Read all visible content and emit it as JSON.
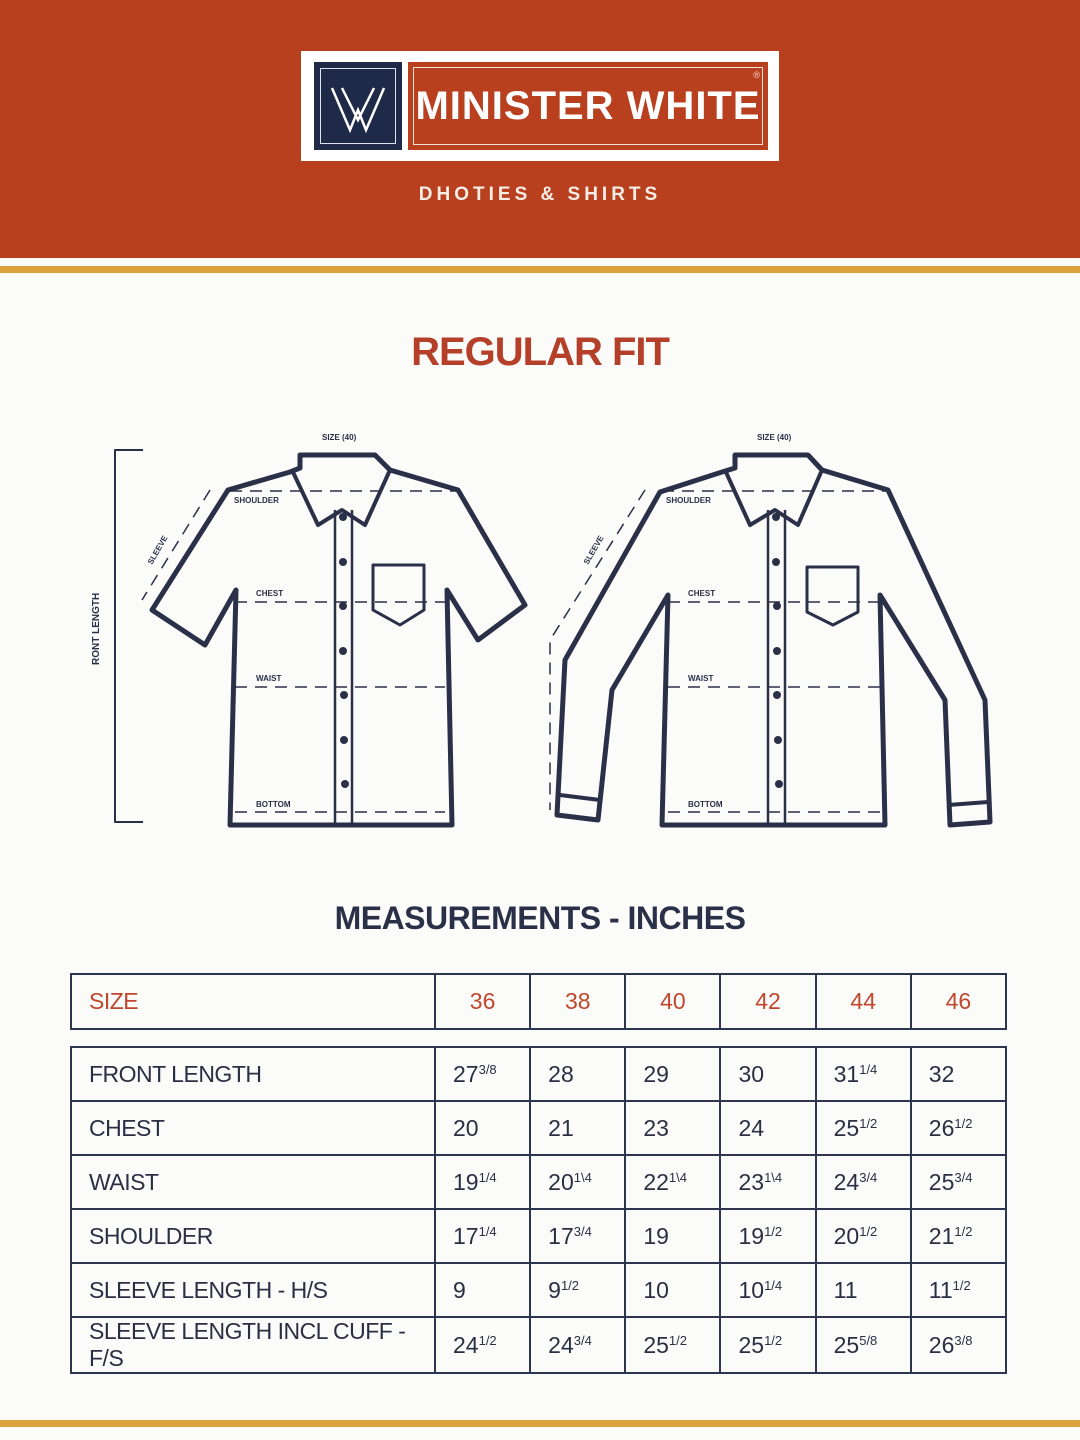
{
  "brand": {
    "name": "MINISTER WHITE",
    "registered": "®",
    "tagline": "DHOTIES & SHIRTS",
    "logo_letter": "W"
  },
  "colors": {
    "brand_red": "#b8401f",
    "navy": "#1f2a48",
    "gold": "#dca33c",
    "title_red": "#b5402a"
  },
  "title": "REGULAR FIT",
  "diagram": {
    "size_label": "SIZE (40)",
    "shoulder": "SHOULDER",
    "sleeve": "SLEEVE",
    "chest": "CHEST",
    "waist": "WAIST",
    "bottom": "BOTTOM",
    "front_length": "RONT LENGTH"
  },
  "measurements_title": "MEASUREMENTS - INCHES",
  "table": {
    "size_label": "SIZE",
    "sizes": [
      "36",
      "38",
      "40",
      "42",
      "44",
      "46"
    ],
    "rows": [
      {
        "label": "FRONT LENGTH",
        "values": [
          [
            "27",
            "3/8"
          ],
          [
            "28",
            ""
          ],
          [
            "29",
            ""
          ],
          [
            "30",
            ""
          ],
          [
            "31",
            "1/4"
          ],
          [
            "32",
            ""
          ]
        ]
      },
      {
        "label": "CHEST",
        "values": [
          [
            "20",
            ""
          ],
          [
            "21",
            ""
          ],
          [
            "23",
            ""
          ],
          [
            "24",
            ""
          ],
          [
            "25",
            "1/2"
          ],
          [
            "26",
            "1/2"
          ]
        ]
      },
      {
        "label": "WAIST",
        "values": [
          [
            "19",
            "1/4"
          ],
          [
            "20",
            "1\\4"
          ],
          [
            "22",
            "1\\4"
          ],
          [
            "23",
            "1\\4"
          ],
          [
            "24",
            "3/4"
          ],
          [
            "25",
            "3/4"
          ]
        ]
      },
      {
        "label": "SHOULDER",
        "values": [
          [
            "17",
            "1/4"
          ],
          [
            "17",
            "3/4"
          ],
          [
            "19",
            ""
          ],
          [
            "19",
            "1/2"
          ],
          [
            "20",
            "1/2"
          ],
          [
            "21",
            "1/2"
          ]
        ]
      },
      {
        "label": "SLEEVE LENGTH - H/S",
        "values": [
          [
            "9",
            ""
          ],
          [
            "9",
            "1/2"
          ],
          [
            "10",
            ""
          ],
          [
            "10",
            "1/4"
          ],
          [
            "11",
            ""
          ],
          [
            "11",
            "1/2"
          ]
        ]
      },
      {
        "label": "SLEEVE LENGTH INCL CUFF - F/S",
        "values": [
          [
            "24",
            "1/2"
          ],
          [
            "24",
            "3/4"
          ],
          [
            "25",
            "1/2"
          ],
          [
            "25",
            "1/2"
          ],
          [
            "25",
            "5/8"
          ],
          [
            "26",
            "3/8"
          ]
        ]
      }
    ]
  }
}
